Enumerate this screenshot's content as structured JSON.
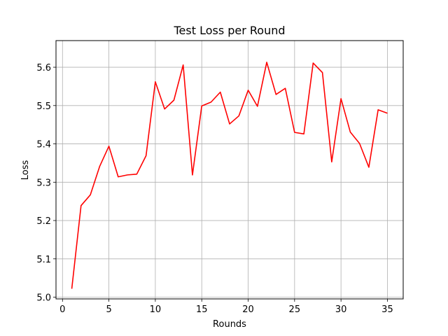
{
  "chart_data": {
    "type": "line",
    "title": "Test Loss per Round",
    "xlabel": "Rounds",
    "ylabel": "Loss",
    "xlim": [
      -0.7,
      36.7
    ],
    "ylim": [
      4.9955,
      5.6695
    ],
    "x_ticks": [
      0,
      5,
      10,
      15,
      20,
      25,
      30,
      35
    ],
    "y_ticks": [
      5.0,
      5.1,
      5.2,
      5.3,
      5.4,
      5.5,
      5.6
    ],
    "grid": true,
    "line_color": "#ff0000",
    "series": [
      {
        "x": [
          1,
          2,
          3,
          4,
          5,
          6,
          7,
          8,
          9,
          10,
          11,
          12,
          13,
          14,
          15,
          16,
          17,
          18,
          19,
          20,
          21,
          22,
          23,
          24,
          25,
          26,
          27,
          28,
          29,
          30,
          31,
          32,
          33,
          34,
          35
        ],
        "values": [
          5.022,
          5.239,
          5.267,
          5.341,
          5.394,
          5.314,
          5.319,
          5.321,
          5.369,
          5.562,
          5.491,
          5.514,
          5.606,
          5.319,
          5.499,
          5.509,
          5.535,
          5.452,
          5.473,
          5.54,
          5.498,
          5.613,
          5.529,
          5.545,
          5.43,
          5.426,
          5.611,
          5.586,
          5.353,
          5.518,
          5.431,
          5.401,
          5.339,
          5.489,
          5.48
        ]
      }
    ]
  }
}
